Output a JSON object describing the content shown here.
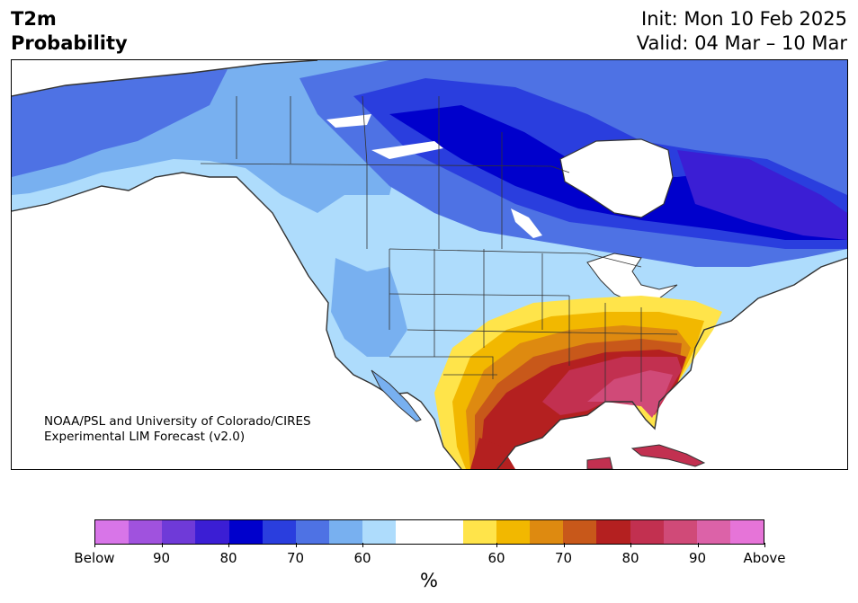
{
  "title": {
    "line1": "T2m",
    "line2": "Probability"
  },
  "dates": {
    "init": "Init: Mon 10 Feb 2025",
    "valid": "Valid: 04 Mar – 10 Mar"
  },
  "credit": {
    "line1": "NOAA/PSL and University of Colorado/CIRES",
    "line2": "Experimental LIM Forecast (v2.0)"
  },
  "colorbar": {
    "colors": [
      "#d875e8",
      "#a052de",
      "#6f3ad8",
      "#3b1ed4",
      "#0000cc",
      "#2a3ede",
      "#4e72e4",
      "#78b0f0",
      "#aedcfc",
      "#ffffff",
      "#ffffff",
      "#ffe44a",
      "#f2b800",
      "#de8a10",
      "#c8581a",
      "#b42020",
      "#c23050",
      "#d04a78",
      "#dc62a8",
      "#e674d8"
    ],
    "tick_labels": [
      "Below",
      "90",
      "80",
      "70",
      "60",
      "60",
      "70",
      "80",
      "90",
      "Above"
    ],
    "unit": "%"
  }
}
